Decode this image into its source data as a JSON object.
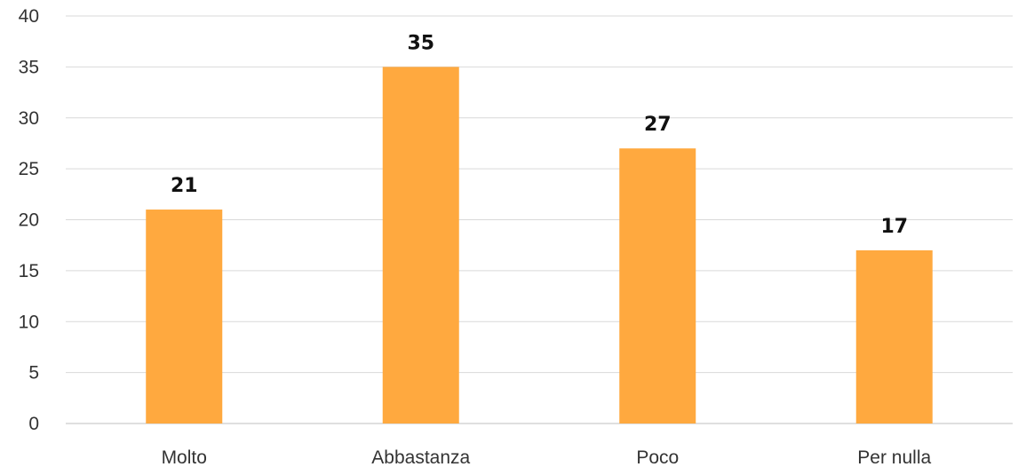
{
  "chart_data": {
    "type": "bar",
    "categories": [
      "Molto",
      "Abbastanza",
      "Poco",
      "Per nulla"
    ],
    "values": [
      21,
      35,
      27,
      17
    ],
    "data_labels": [
      "21",
      "35",
      "27",
      "17"
    ],
    "title": "",
    "xlabel": "",
    "ylabel": "",
    "ylim": [
      0,
      40
    ],
    "y_ticks": [
      0,
      5,
      10,
      15,
      20,
      25,
      30,
      35,
      40
    ],
    "y_tick_labels": [
      "0",
      "5",
      "10",
      "15",
      "20",
      "25",
      "30",
      "35",
      "40"
    ],
    "grid": true,
    "legend": "none",
    "colors": {
      "bar": "#ffa93f",
      "gridline": "#d9d9d9",
      "axis_text": "#333333",
      "label_text": "#111111"
    }
  }
}
